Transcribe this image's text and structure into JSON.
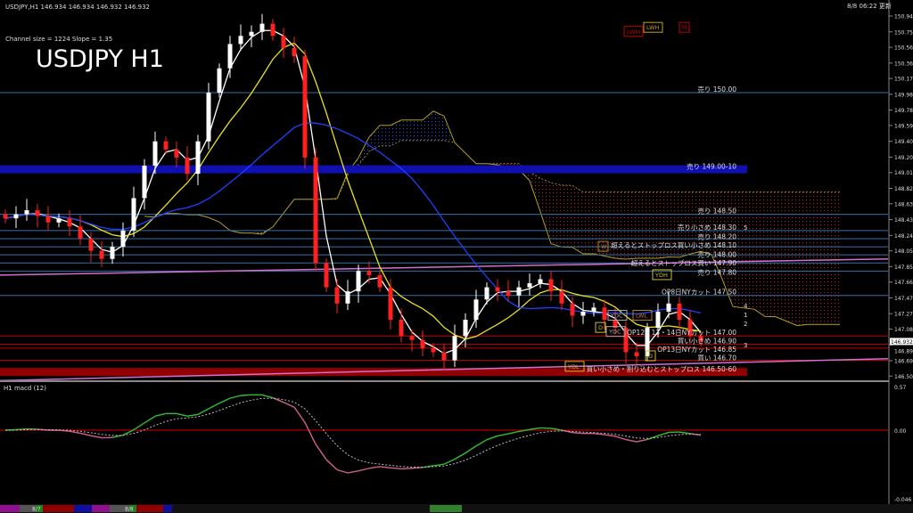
{
  "header": {
    "symbol_info": "USDJPY,H1  146.934 146.934 146.932 146.932",
    "channel_info": "Channel size = 1224 Slope = 1.35",
    "big_title": "USDJPY H1",
    "updated": "8/8 06:22 更新"
  },
  "colors": {
    "bull": "#ffffff",
    "bear": "#ff2020",
    "ma_fast": "#ffffff",
    "ma_mid": "#e8e020",
    "ma_slow": "#2040ff",
    "level": "#3a6fa8",
    "buy_level": "#c00000",
    "macd_up": "#30c030",
    "macd_down": "#d06090",
    "background": "#000000"
  },
  "chart_data": {
    "type": "candlestick",
    "timeframe": "H1",
    "y_ticks": [
      "150.945",
      "150.750",
      "150.560",
      "150.365",
      "150.175",
      "149.980",
      "149.785",
      "149.595",
      "149.400",
      "149.205",
      "149.015",
      "148.820",
      "148.630",
      "148.435",
      "148.240",
      "148.050",
      "147.855",
      "147.665",
      "147.470",
      "147.275",
      "147.085",
      "146.890",
      "146.695",
      "146.505"
    ],
    "ylim": [
      146.5,
      150.95
    ],
    "current_price": "146.932",
    "closes": [
      148.45,
      148.5,
      148.55,
      148.48,
      148.4,
      148.45,
      148.35,
      148.2,
      148.05,
      147.95,
      148.1,
      148.3,
      148.7,
      149.1,
      149.4,
      149.3,
      149.2,
      149.0,
      149.4,
      150.0,
      150.3,
      150.6,
      150.7,
      150.75,
      150.85,
      150.7,
      150.55,
      150.45,
      149.2,
      147.9,
      147.6,
      147.4,
      147.55,
      147.8,
      147.75,
      147.6,
      147.2,
      147.0,
      146.95,
      146.85,
      146.8,
      146.7,
      147.0,
      147.2,
      147.45,
      147.6,
      147.55,
      147.5,
      147.6,
      147.65,
      147.7,
      147.55,
      147.4,
      147.25,
      147.3,
      147.35,
      147.2,
      147.1,
      146.8,
      146.75,
      147.1,
      147.3,
      147.4,
      147.2,
      147.0,
      146.93
    ],
    "levels": [
      {
        "price": 150.0,
        "label": "売り 150.00",
        "kind": "sell"
      },
      {
        "price": 149.05,
        "label": "売り 149.00-10",
        "kind": "sell-band"
      },
      {
        "price": 148.5,
        "label": "売り 148.50",
        "kind": "sell"
      },
      {
        "price": 148.3,
        "label": "売り小さめ 148.30",
        "kind": "sell"
      },
      {
        "price": 148.2,
        "label": "売り 148.20",
        "kind": "sell"
      },
      {
        "price": 148.1,
        "label": "超えるとストップロス買い小さめ 148.10",
        "kind": "sell"
      },
      {
        "price": 148.0,
        "label": "売り 148.00",
        "kind": "sell"
      },
      {
        "price": 147.9,
        "label": "超えるとストップロス買い 147.90",
        "kind": "sell"
      },
      {
        "price": 147.8,
        "label": "売り 147.80",
        "kind": "sell"
      },
      {
        "price": 147.5,
        "label": "OP8日NYカット 147.50",
        "kind": "op"
      },
      {
        "price": 147.0,
        "label": "OP12・13・14日NYカット 147.00",
        "kind": "buy"
      },
      {
        "price": 146.9,
        "label": "買い小さめ 146.90",
        "kind": "buy"
      },
      {
        "price": 146.85,
        "label": "OP13日NYカット 146.85",
        "kind": "buy"
      },
      {
        "price": 146.7,
        "label": "買い 146.70",
        "kind": "buy"
      },
      {
        "price": 146.55,
        "label": "買い小さめ・割り込むとストップロス 146.50-60",
        "kind": "buy-band"
      }
    ],
    "markers": [
      {
        "label": "LWM",
        "price": 150.75,
        "color": "#c00000"
      },
      {
        "label": "LWH",
        "price": 150.8,
        "color": "#c0a020"
      },
      {
        "label": "M",
        "price": 150.8,
        "color": "#c00000"
      },
      {
        "label": "YDH",
        "price": 147.75,
        "color": "#d0c020"
      },
      {
        "label": "YDC",
        "price": 147.25,
        "color": "#aaaaaa"
      },
      {
        "label": "YDC",
        "price": 147.05,
        "color": "#aaaaaa"
      },
      {
        "label": "LWL",
        "price": 147.25,
        "color": "#c08020"
      },
      {
        "label": "D",
        "price": 147.1,
        "color": "#d0c020"
      },
      {
        "label": "D",
        "price": 146.75,
        "color": "#d0c020"
      },
      {
        "label": "YDL",
        "price": 146.62,
        "color": "#d0c020"
      },
      {
        "label": "W",
        "price": 148.1,
        "color": "#c08020"
      }
    ],
    "channel_numbers": [
      "5",
      "4",
      "1",
      "2",
      "3"
    ],
    "macd": {
      "title": "H1  macd (12)",
      "y_ticks": [
        "0.57",
        "0.00",
        "-0.046"
      ]
    }
  },
  "footer": {
    "dates": [
      "8/7",
      "8/8"
    ]
  }
}
